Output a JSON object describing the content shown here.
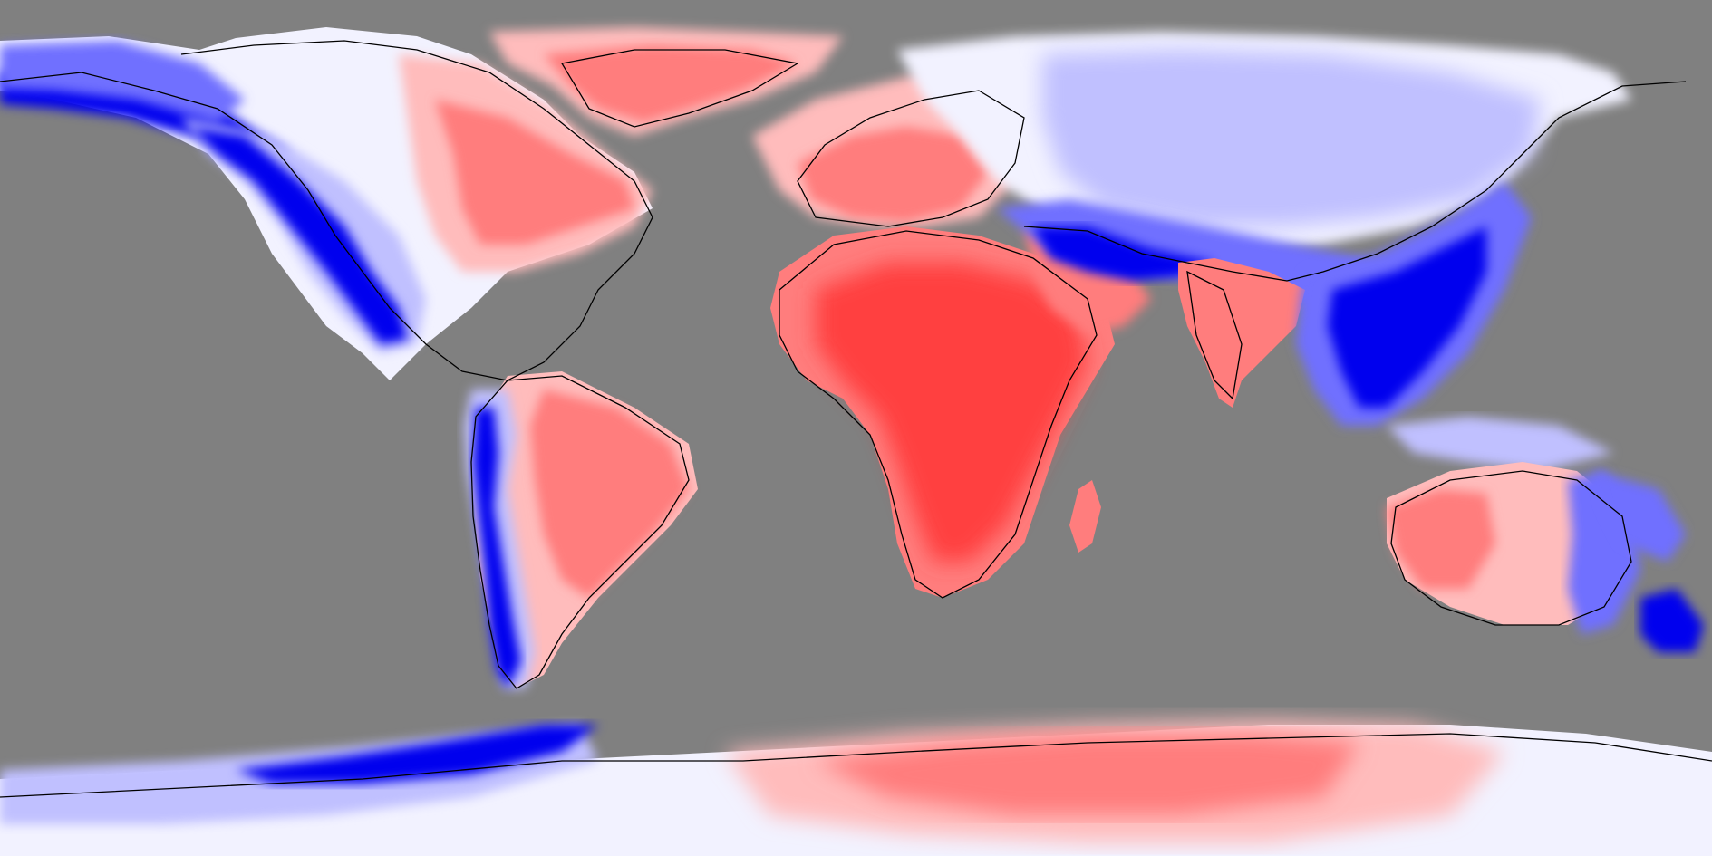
{
  "map": {
    "projection": "equirectangular",
    "type": "diverging-anomaly-field",
    "colors": {
      "ocean_mask": "#808080",
      "coastline": "#000000",
      "positive_strong": "#ff4040",
      "positive_mid": "#ff7d7d",
      "positive_light": "#ffbcbc",
      "neutral": "#f2f2ff",
      "negative_light": "#c0c0ff",
      "negative_mid": "#7070ff",
      "negative_strong": "#0000ee"
    },
    "regions": [
      {
        "name": "greenland",
        "sign": "positive"
      },
      {
        "name": "europe-northern-africa",
        "sign": "positive"
      },
      {
        "name": "africa",
        "sign": "positive"
      },
      {
        "name": "arabia",
        "sign": "positive"
      },
      {
        "name": "india",
        "sign": "positive"
      },
      {
        "name": "madagascar",
        "sign": "positive"
      },
      {
        "name": "eastern-north-america",
        "sign": "positive"
      },
      {
        "name": "eastern-south-america",
        "sign": "positive"
      },
      {
        "name": "western-australia",
        "sign": "positive"
      },
      {
        "name": "east-antarctica",
        "sign": "positive"
      },
      {
        "name": "western-north-america-rockies",
        "sign": "negative"
      },
      {
        "name": "alaska",
        "sign": "negative"
      },
      {
        "name": "andes",
        "sign": "negative"
      },
      {
        "name": "central-asia",
        "sign": "negative"
      },
      {
        "name": "southeast-asia",
        "sign": "negative"
      },
      {
        "name": "eastern-australia",
        "sign": "negative"
      },
      {
        "name": "new-zealand",
        "sign": "negative"
      },
      {
        "name": "antarctic-peninsula",
        "sign": "negative"
      }
    ]
  }
}
